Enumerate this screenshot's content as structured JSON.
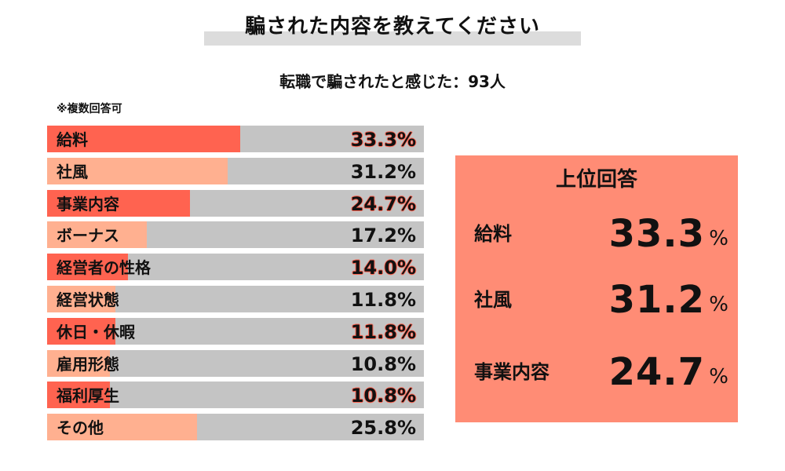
{
  "title": "騙された内容を教えてください",
  "subtitle": "転職で騙されたと感じた：93人",
  "note": "※複数回答可",
  "colors": {
    "emphasis": "#ff6350",
    "light": "#ffb090",
    "track": "#c4c4c4",
    "panel": "#ff8c75"
  },
  "chart_data": {
    "type": "bar",
    "orientation": "horizontal",
    "unit": "%",
    "xlim": [
      0,
      100
    ],
    "categories": [
      "給料",
      "社風",
      "事業内容",
      "ボーナス",
      "経営者の性格",
      "経営状態",
      "休日・休暇",
      "雇用形態",
      "福利厚生",
      "その他"
    ],
    "values": [
      33.3,
      31.2,
      24.7,
      17.2,
      14.0,
      11.8,
      11.8,
      10.8,
      10.8,
      25.8
    ],
    "value_labels": [
      "33.3%",
      "31.2%",
      "24.7%",
      "17.2%",
      "14.0%",
      "11.8%",
      "11.8%",
      "10.8%",
      "10.8%",
      "25.8%"
    ],
    "styles": [
      "emph",
      "light",
      "emph",
      "light",
      "emph",
      "light",
      "emph",
      "light",
      "emph",
      "light"
    ]
  },
  "top_answers": {
    "heading": "上位回答",
    "pct_symbol": "%",
    "items": [
      {
        "label": "給料",
        "value": "33.3"
      },
      {
        "label": "社風",
        "value": "31.2"
      },
      {
        "label": "事業内容",
        "value": "24.7"
      }
    ]
  }
}
